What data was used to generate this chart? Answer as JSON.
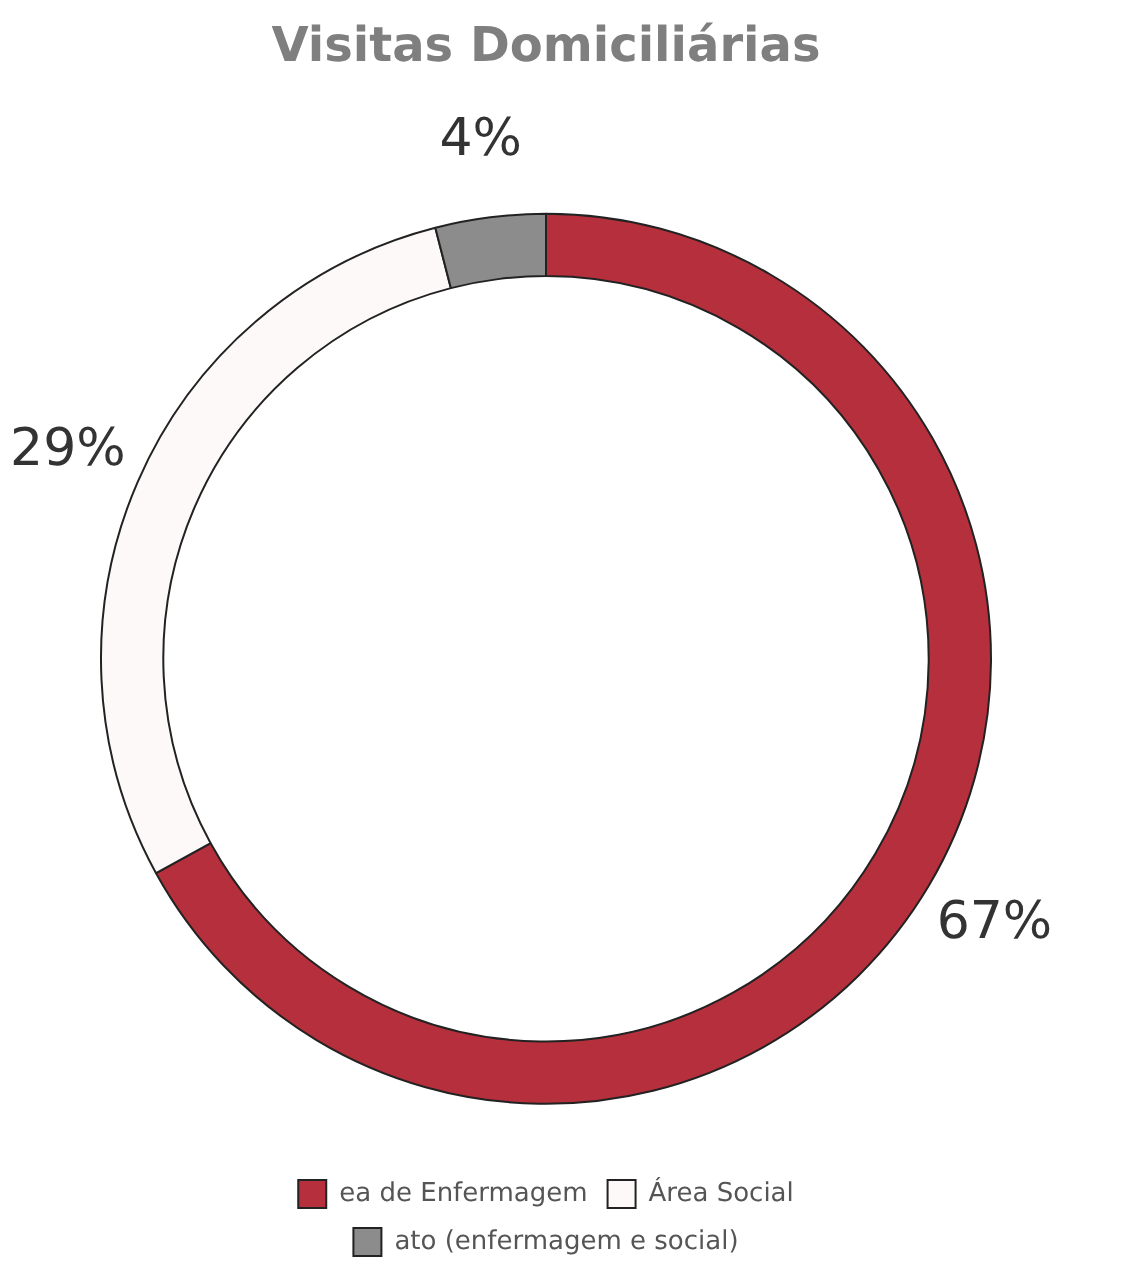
{
  "chart_data": {
    "type": "donut",
    "title": "Visitas Domiciliárias",
    "categories": [
      "ea de Enfermagem",
      "Área Social",
      "ato (enfermagem e social)"
    ],
    "values": [
      67,
      29,
      4
    ],
    "colors": [
      "#b5303c",
      "#fdf9f9",
      "#8c8c8c"
    ],
    "value_labels": [
      "67%",
      "29%",
      "4%"
    ],
    "legend": "bottom"
  }
}
